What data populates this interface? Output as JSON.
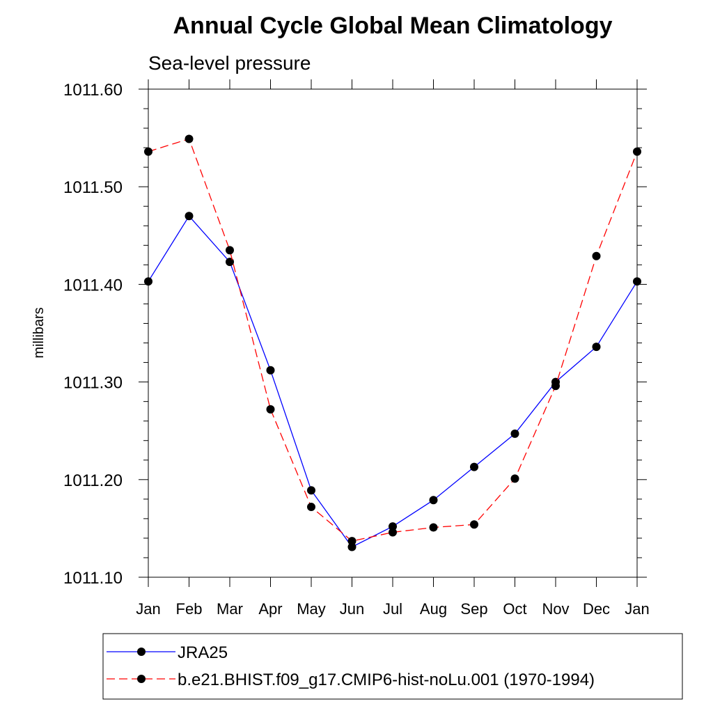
{
  "chart_data": {
    "type": "line",
    "title": "Annual Cycle Global Mean Climatology",
    "subtitle": "Sea-level pressure",
    "xlabel": "",
    "ylabel": "millibars",
    "categories": [
      "Jan",
      "Feb",
      "Mar",
      "Apr",
      "May",
      "Jun",
      "Jul",
      "Aug",
      "Sep",
      "Oct",
      "Nov",
      "Dec",
      "Jan"
    ],
    "ylim": [
      1011.1,
      1011.6
    ],
    "yticks": [
      "1011.10",
      "1011.20",
      "1011.30",
      "1011.40",
      "1011.50",
      "1011.60"
    ],
    "grid": false,
    "legend_position": "bottom",
    "series": [
      {
        "name": "JRA25",
        "color": "#0000ff",
        "style": "solid",
        "values": [
          1011.403,
          1011.47,
          1011.423,
          1011.312,
          1011.189,
          1011.131,
          1011.152,
          1011.179,
          1011.213,
          1011.247,
          1011.3,
          1011.336,
          1011.403
        ]
      },
      {
        "name": "b.e21.BHIST.f09_g17.CMIP6-hist-noLu.001 (1970-1994)",
        "color": "#ff0000",
        "style": "dashed",
        "values": [
          1011.536,
          1011.549,
          1011.435,
          1011.272,
          1011.172,
          1011.137,
          1011.146,
          1011.151,
          1011.154,
          1011.201,
          1011.296,
          1011.429,
          1011.536
        ]
      }
    ]
  }
}
